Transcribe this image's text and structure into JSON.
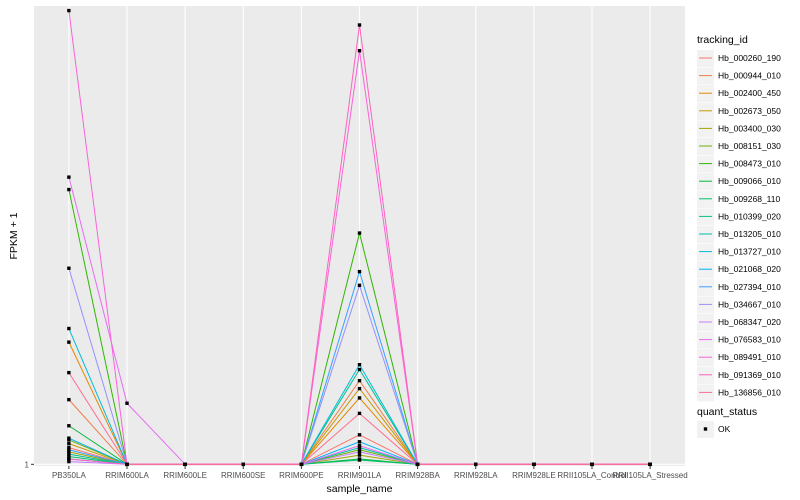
{
  "chart_data": {
    "type": "line",
    "xlabel": "sample_name",
    "ylabel": "FPKM + 1",
    "y_scale": "log",
    "grid": true,
    "legend_position": "right",
    "categories": [
      "PB350LA",
      "RRIM600LA",
      "RRIM600LE",
      "RRIM600SE",
      "RRIM600PE",
      "RRIM901LA",
      "RRIM928BA",
      "RRIM928LA",
      "RRIM928LE",
      "RRII105LA_Control",
      "RRII105LA_Stressed"
    ],
    "y_ticks": [
      {
        "value": 1,
        "label": "1"
      }
    ],
    "ylim": [
      0.97,
      3800
    ],
    "series": [
      {
        "name": "Hb_000260_190",
        "color": "#F8766D",
        "values": [
          1.35,
          1,
          1,
          1,
          1,
          1.7,
          1,
          1,
          1,
          1,
          1
        ]
      },
      {
        "name": "Hb_000944_010",
        "color": "#F07E4A",
        "values": [
          3.2,
          1,
          1,
          1,
          1,
          4.5,
          1,
          1,
          1,
          1,
          1
        ]
      },
      {
        "name": "Hb_002400_450",
        "color": "#E58700",
        "values": [
          9.0,
          1,
          1,
          1,
          1,
          3.3,
          1,
          1,
          1,
          1,
          1
        ]
      },
      {
        "name": "Hb_002673_050",
        "color": "#C99800",
        "values": [
          1.45,
          1,
          1,
          1,
          1,
          3.9,
          1,
          1,
          1,
          1,
          1
        ]
      },
      {
        "name": "Hb_003400_030",
        "color": "#A3A500",
        "values": [
          1.25,
          1,
          1,
          1,
          1,
          1.18,
          1,
          1,
          1,
          1,
          1
        ]
      },
      {
        "name": "Hb_008151_030",
        "color": "#6BB100",
        "values": [
          1.55,
          1,
          1,
          1,
          1,
          1.3,
          1,
          1,
          1,
          1,
          1
        ]
      },
      {
        "name": "Hb_008473_010",
        "color": "#2FB600",
        "values": [
          140,
          1,
          1,
          1,
          1,
          64,
          1,
          1,
          1,
          1,
          1
        ]
      },
      {
        "name": "Hb_009066_010",
        "color": "#00BA38",
        "values": [
          2.0,
          1,
          1,
          1,
          1,
          1.1,
          1,
          1,
          1,
          1,
          1
        ]
      },
      {
        "name": "Hb_009268_110",
        "color": "#00BE6C",
        "values": [
          1.15,
          1,
          1,
          1,
          1,
          1.08,
          1,
          1,
          1,
          1,
          1
        ]
      },
      {
        "name": "Hb_010399_020",
        "color": "#00C08B",
        "values": [
          1.2,
          1,
          1,
          1,
          1,
          5.5,
          1,
          1,
          1,
          1,
          1
        ]
      },
      {
        "name": "Hb_013205_010",
        "color": "#00C0AF",
        "values": [
          1.1,
          1,
          1,
          1,
          1,
          1.35,
          1,
          1,
          1,
          1,
          1
        ]
      },
      {
        "name": "Hb_013727_010",
        "color": "#00BCD8",
        "values": [
          11.5,
          1,
          1,
          1,
          1,
          6.0,
          1,
          1,
          1,
          1,
          1
        ]
      },
      {
        "name": "Hb_021068_020",
        "color": "#00B0F6",
        "values": [
          1.6,
          1,
          1,
          1,
          1,
          1.5,
          1,
          1,
          1,
          1,
          1
        ]
      },
      {
        "name": "Hb_027394_010",
        "color": "#35A2FF",
        "values": [
          1.3,
          1,
          1,
          1,
          1,
          32,
          1,
          1,
          1,
          1,
          1
        ]
      },
      {
        "name": "Hb_034667_010",
        "color": "#9590FF",
        "values": [
          34,
          1,
          1,
          1,
          1,
          25,
          1,
          1,
          1,
          1,
          1
        ]
      },
      {
        "name": "Hb_068347_020",
        "color": "#C77CFF",
        "values": [
          1.05,
          1,
          1,
          1,
          1,
          1.25,
          1,
          1,
          1,
          1,
          1
        ]
      },
      {
        "name": "Hb_076583_010",
        "color": "#E76BF3",
        "values": [
          175,
          3.0,
          1,
          1,
          1,
          1.4,
          1,
          1,
          1,
          1,
          1
        ]
      },
      {
        "name": "Hb_089491_010",
        "color": "#FA62DB",
        "values": [
          3500,
          1,
          1,
          1,
          1,
          1700,
          1,
          1,
          1,
          1,
          1
        ]
      },
      {
        "name": "Hb_091369_010",
        "color": "#FF62BC",
        "values": [
          1.1,
          1,
          1,
          1,
          1,
          2700,
          1,
          1,
          1,
          1,
          1
        ]
      },
      {
        "name": "Hb_136856_010",
        "color": "#FF6C91",
        "values": [
          5.2,
          1,
          1,
          1,
          1,
          2.5,
          1,
          1,
          1,
          1,
          1
        ]
      }
    ],
    "legend": {
      "color_title": "tracking_id",
      "shape_title": "quant_status",
      "shape_items": [
        "OK"
      ]
    }
  }
}
